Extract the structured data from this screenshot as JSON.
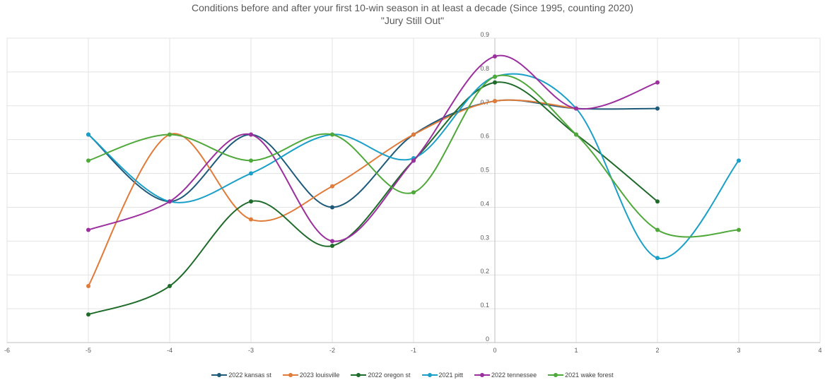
{
  "chart_data": {
    "type": "line",
    "title": "Conditions before and after your first 10-win season in at least a decade (Since 1995, counting 2020)",
    "subtitle": "\"Jury Still Out\"",
    "xlabel": "",
    "ylabel": "",
    "xlim": [
      -6,
      4
    ],
    "ylim": [
      0,
      0.9
    ],
    "x_ticks": [
      "-6",
      "-5",
      "-4",
      "-3",
      "-2",
      "-1",
      "0",
      "1",
      "2",
      "3",
      "4"
    ],
    "y_ticks": [
      "0",
      "0.1",
      "0.2",
      "0.3",
      "0.4",
      "0.5",
      "0.6",
      "0.7",
      "0.8",
      "0.9"
    ],
    "grid": true,
    "legend": "bottom",
    "series": [
      {
        "name": "2022 kansas st",
        "color": "#1f5a7a",
        "x": [
          -5,
          -4,
          -3,
          -2,
          -1,
          0,
          1,
          2
        ],
        "y": [
          0.615,
          0.417,
          0.615,
          0.4,
          0.615,
          0.714,
          0.692,
          0.692
        ]
      },
      {
        "name": "2023 louisville",
        "color": "#e07b39",
        "x": [
          -5,
          -4,
          -3,
          -2,
          -1,
          0,
          1
        ],
        "y": [
          0.167,
          0.615,
          0.364,
          0.462,
          0.615,
          0.714,
          0.692
        ]
      },
      {
        "name": "2022 oregon st",
        "color": "#1e6b2a",
        "x": [
          -5,
          -4,
          -3,
          -2,
          -1,
          0,
          1,
          2
        ],
        "y": [
          0.083,
          0.167,
          0.417,
          0.286,
          0.538,
          0.769,
          0.615,
          0.417
        ]
      },
      {
        "name": "2021 pitt",
        "color": "#1aa0c8",
        "x": [
          -5,
          -4,
          -3,
          -2,
          -1,
          0,
          1,
          2,
          3
        ],
        "y": [
          0.615,
          0.417,
          0.5,
          0.615,
          0.545,
          0.786,
          0.692,
          0.25,
          0.538
        ]
      },
      {
        "name": "2022 tennessee",
        "color": "#9b2f9e",
        "x": [
          -5,
          -4,
          -3,
          -2,
          -1,
          0,
          1,
          2
        ],
        "y": [
          0.333,
          0.417,
          0.615,
          0.3,
          0.538,
          0.846,
          0.692,
          0.769
        ]
      },
      {
        "name": "2021 wake forest",
        "color": "#4fa83a",
        "x": [
          -5,
          -4,
          -3,
          -2,
          -1,
          0,
          1,
          2,
          3
        ],
        "y": [
          0.538,
          0.615,
          0.538,
          0.615,
          0.444,
          0.786,
          0.615,
          0.333,
          0.333
        ]
      }
    ]
  }
}
